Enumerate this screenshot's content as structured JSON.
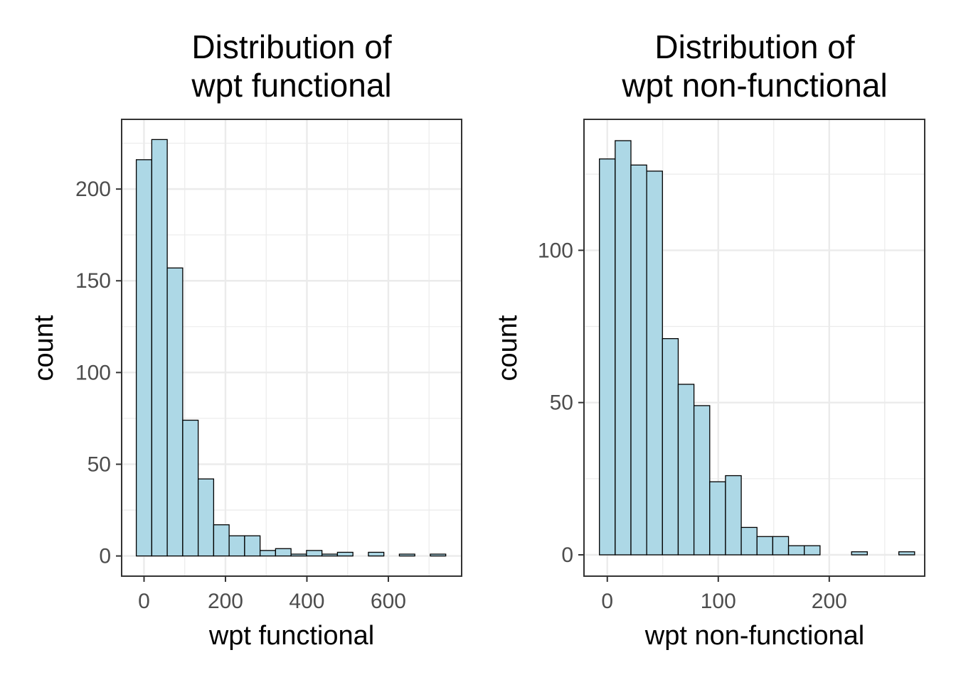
{
  "chart_data": [
    {
      "type": "bar",
      "subtype": "histogram",
      "title_lines": [
        "Distribution of",
        "wpt functional"
      ],
      "xlabel": "wpt functional",
      "ylabel": "count",
      "bin_width": 38,
      "bin_start": -19,
      "values": [
        216,
        227,
        157,
        74,
        42,
        17,
        11,
        11,
        3,
        4,
        1,
        3,
        1,
        2,
        0,
        2,
        0,
        1,
        0,
        1
      ],
      "xlim": [
        -55,
        780
      ],
      "ylim": [
        -11,
        238
      ],
      "xticks": [
        0,
        200,
        400,
        600
      ],
      "yticks": [
        0,
        50,
        100,
        150,
        200
      ],
      "grid": true,
      "fill_color": "#add8e6",
      "edge_color": "#000000"
    },
    {
      "type": "bar",
      "subtype": "histogram",
      "title_lines": [
        "Distribution of",
        "wpt non-functional"
      ],
      "xlabel": "wpt non-functional",
      "ylabel": "count",
      "bin_width": 14.2,
      "bin_start": -7.1,
      "values": [
        130,
        136,
        128,
        126,
        71,
        56,
        49,
        24,
        26,
        9,
        6,
        6,
        3,
        3,
        0,
        0,
        1,
        0,
        0,
        1
      ],
      "xlim": [
        -21,
        286
      ],
      "ylim": [
        -7,
        143
      ],
      "xticks": [
        0,
        100,
        200
      ],
      "yticks": [
        0,
        50,
        100
      ],
      "grid": true,
      "fill_color": "#add8e6",
      "edge_color": "#000000"
    }
  ]
}
